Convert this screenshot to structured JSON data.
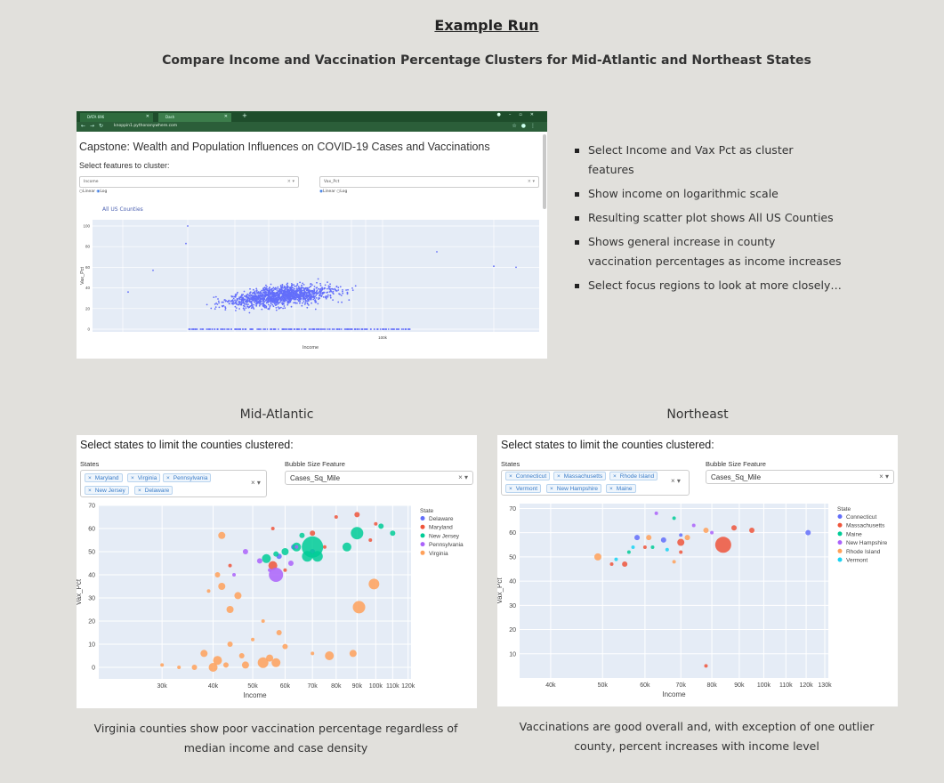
{
  "header": {
    "title": "Example Run",
    "subtitle": "Compare Income and Vaccination Percentage Clusters for Mid-Atlantic and Northeast States"
  },
  "browser": {
    "tabs": [
      {
        "label": "DATA 696"
      },
      {
        "label": "Dash"
      }
    ],
    "new_tab": "+",
    "url": "knoppin1.pythonanywhere.com",
    "app_title": "Capstone: Wealth and Population Influences on COVID-19 Cases and Vaccinations",
    "features_label": "Select features to cluster:",
    "x_feature": {
      "value": "Income",
      "options": [
        "Linear",
        "Log"
      ],
      "selected": "Log"
    },
    "y_feature": {
      "value": "Vax_Pct",
      "options": [
        "Linear",
        "Log"
      ],
      "selected": "Linear"
    },
    "chart_title": "All US Counties"
  },
  "bullets": [
    "Select Income and Vax Pct as cluster features",
    "Show income on logarithmic scale",
    "Resulting scatter plot shows All US Counties",
    "Shows general increase in county vaccination percentages as income increases",
    "Select focus regions to look at more closely…"
  ],
  "sections": {
    "mid_atlantic_title": "Mid-Atlantic",
    "northeast_title": "Northeast"
  },
  "mid_atlantic": {
    "heading": "Select states to limit the counties clustered:",
    "states_label": "States",
    "states": [
      "Maryland",
      "Virginia",
      "Pennsylvania",
      "New Jersey",
      "Delaware"
    ],
    "bubble_label": "Bubble Size Feature",
    "bubble_value": "Cases_Sq_Mile"
  },
  "northeast": {
    "heading": "Select states to limit the counties clustered:",
    "states_label": "States",
    "states": [
      "Connecticut",
      "Massachusetts",
      "Rhode Island",
      "Vermont",
      "New Hampshire",
      "Maine"
    ],
    "bubble_label": "Bubble Size Feature",
    "bubble_value": "Cases_Sq_Mile"
  },
  "captions": {
    "mid_atlantic": "Virginia counties show poor vaccination percentage regardless of median income and case density",
    "northeast": "Vaccinations are good overall and, with exception of one outlier county, percent increases with income level"
  },
  "colors": {
    "page_bg": "#e1e0dc",
    "browser_chrome": "#1e4d2b",
    "plot_bg": "#e5ecf6",
    "us_points": "#636efa",
    "Delaware": "#636efa",
    "Maryland": "#ef553b",
    "New Jersey": "#00cc96",
    "Pennsylvania": "#ab63fa",
    "Virginia": "#ffa15a",
    "Connecticut": "#636efa",
    "Massachusetts": "#ef553b",
    "Maine": "#00cc96",
    "New Hampshire": "#ab63fa",
    "Rhode Island": "#ffa15a",
    "Vermont": "#19d3f3"
  },
  "chart_data": [
    {
      "type": "scatter",
      "title": "All US Counties",
      "xlabel": "Income",
      "ylabel": "Vax_Pct",
      "x_scale": "log",
      "x_ticks": [
        "",
        "",
        "",
        "",
        "",
        "",
        "",
        "",
        "100k",
        "",
        ""
      ],
      "y_ticks": [
        0,
        20,
        40,
        60,
        80,
        100
      ],
      "ylim": [
        0,
        100
      ],
      "series": [
        {
          "values_note_count": 1500
        }
      ]
    },
    {
      "type": "scatter",
      "title": "",
      "xlabel": "Income",
      "ylabel": "Vax_Pct",
      "x_scale": "log",
      "x_ticks": [
        "30k",
        "40k",
        "50k",
        "60k",
        "70k",
        "80k",
        "90k",
        "100k",
        "110k",
        "120k"
      ],
      "y_ticks": [
        0,
        10,
        20,
        30,
        40,
        50,
        60,
        70
      ],
      "ylim": [
        -5,
        70
      ],
      "xlim": [
        21000,
        122000
      ],
      "legend_title": "State",
      "legend_position": "right",
      "series": [
        {
          "name": "Delaware",
          "points": [
            [
              58000,
              48,
              3
            ],
            [
              63000,
              52,
              3
            ],
            [
              70000,
              50,
              3
            ]
          ]
        },
        {
          "name": "Maryland",
          "points": [
            [
              44000,
              44,
              2
            ],
            [
              56000,
              44,
              5
            ],
            [
              60000,
              42,
              2
            ],
            [
              70000,
              58,
              3
            ],
            [
              80000,
              65,
              2
            ],
            [
              90000,
              66,
              3
            ],
            [
              100000,
              62,
              2
            ],
            [
              97000,
              55,
              2
            ],
            [
              75000,
              52,
              2
            ],
            [
              56000,
              60,
              2
            ]
          ]
        },
        {
          "name": "New Jersey",
          "points": [
            [
              70000,
              52,
              12
            ],
            [
              68000,
              48,
              6
            ],
            [
              72000,
              48,
              6
            ],
            [
              90000,
              58,
              7
            ],
            [
              85000,
              52,
              5
            ],
            [
              64000,
              52,
              5
            ],
            [
              60000,
              50,
              4
            ],
            [
              110000,
              58,
              3
            ],
            [
              103000,
              61,
              3
            ],
            [
              54000,
              47,
              5
            ],
            [
              57000,
              49,
              3
            ],
            [
              66000,
              57,
              3
            ]
          ]
        },
        {
          "name": "Pennsylvania",
          "points": [
            [
              57000,
              40,
              8
            ],
            [
              48000,
              50,
              3
            ],
            [
              62000,
              45,
              3
            ],
            [
              52000,
              46,
              3
            ],
            [
              45000,
              40,
              2
            ],
            [
              64000,
              52,
              2
            ],
            [
              55000,
              42,
              2
            ]
          ]
        },
        {
          "name": "Virginia",
          "points": [
            [
              40000,
              0,
              5
            ],
            [
              41000,
              3,
              5
            ],
            [
              43000,
              1,
              3
            ],
            [
              38000,
              6,
              4
            ],
            [
              44000,
              10,
              3
            ],
            [
              48000,
              1,
              4
            ],
            [
              53000,
              2,
              6
            ],
            [
              57000,
              2,
              5
            ],
            [
              55000,
              4,
              4
            ],
            [
              60000,
              9,
              3
            ],
            [
              50000,
              12,
              2
            ],
            [
              36000,
              0,
              3
            ],
            [
              33000,
              0,
              2
            ],
            [
              47000,
              5,
              3
            ],
            [
              42000,
              35,
              4
            ],
            [
              42000,
              57,
              4
            ],
            [
              46000,
              31,
              4
            ],
            [
              44000,
              25,
              4
            ],
            [
              91000,
              26,
              7
            ],
            [
              99000,
              36,
              6
            ],
            [
              77000,
              5,
              5
            ],
            [
              88000,
              6,
              4
            ],
            [
              39000,
              33,
              2
            ],
            [
              41000,
              40,
              3
            ],
            [
              70000,
              6,
              2
            ],
            [
              58000,
              15,
              3
            ],
            [
              53000,
              20,
              2
            ],
            [
              30000,
              1,
              2
            ]
          ]
        }
      ]
    },
    {
      "type": "scatter",
      "title": "",
      "xlabel": "Income",
      "ylabel": "Vax_Pct",
      "x_scale": "log",
      "x_ticks": [
        "40k",
        "50k",
        "60k",
        "70k",
        "80k",
        "90k",
        "100k",
        "110k",
        "120k",
        "130k"
      ],
      "y_ticks": [
        10,
        20,
        30,
        40,
        50,
        60,
        70
      ],
      "ylim": [
        0,
        72
      ],
      "xlim": [
        35000,
        132000
      ],
      "legend_title": "State",
      "legend_position": "right",
      "series": [
        {
          "name": "Connecticut",
          "points": [
            [
              58000,
              58,
              3
            ],
            [
              65000,
              57,
              3
            ],
            [
              70000,
              59,
              2
            ],
            [
              121000,
              60,
              3
            ]
          ]
        },
        {
          "name": "Massachusetts",
          "points": [
            [
              84000,
              55,
              9
            ],
            [
              70000,
              56,
              4
            ],
            [
              55000,
              47,
              3
            ],
            [
              88000,
              62,
              3
            ],
            [
              95000,
              61,
              3
            ],
            [
              60000,
              54,
              2
            ],
            [
              52000,
              47,
              2
            ],
            [
              70000,
              52,
              2
            ],
            [
              78000,
              5,
              2
            ]
          ]
        },
        {
          "name": "Maine",
          "points": [
            [
              56000,
              52,
              2
            ],
            [
              62000,
              54,
              2
            ],
            [
              68000,
              66,
              2
            ]
          ]
        },
        {
          "name": "New Hampshire",
          "points": [
            [
              74000,
              63,
              2
            ],
            [
              80000,
              60,
              2
            ],
            [
              63000,
              68,
              2
            ]
          ]
        },
        {
          "name": "Rhode Island",
          "points": [
            [
              49000,
              50,
              4
            ],
            [
              61000,
              58,
              3
            ],
            [
              78000,
              61,
              3
            ],
            [
              72000,
              58,
              3
            ],
            [
              68000,
              48,
              2
            ]
          ]
        },
        {
          "name": "Vermont",
          "points": [
            [
              53000,
              49,
              2
            ],
            [
              57000,
              54,
              2
            ],
            [
              66000,
              53,
              2
            ]
          ]
        }
      ]
    }
  ]
}
